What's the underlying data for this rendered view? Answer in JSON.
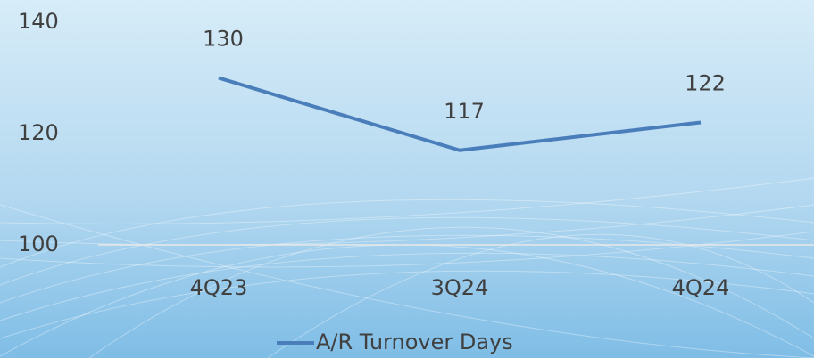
{
  "chart_data": {
    "type": "line",
    "categories": [
      "4Q23",
      "3Q24",
      "4Q24"
    ],
    "series": [
      {
        "name": "A/R Turnover Days",
        "color": "#4a7ebb",
        "values": [
          130,
          117,
          122
        ]
      }
    ],
    "ylim": [
      100,
      140
    ],
    "yticks": [
      100,
      120,
      140
    ],
    "grid": false,
    "legend": "bottom",
    "data_labels": true
  }
}
